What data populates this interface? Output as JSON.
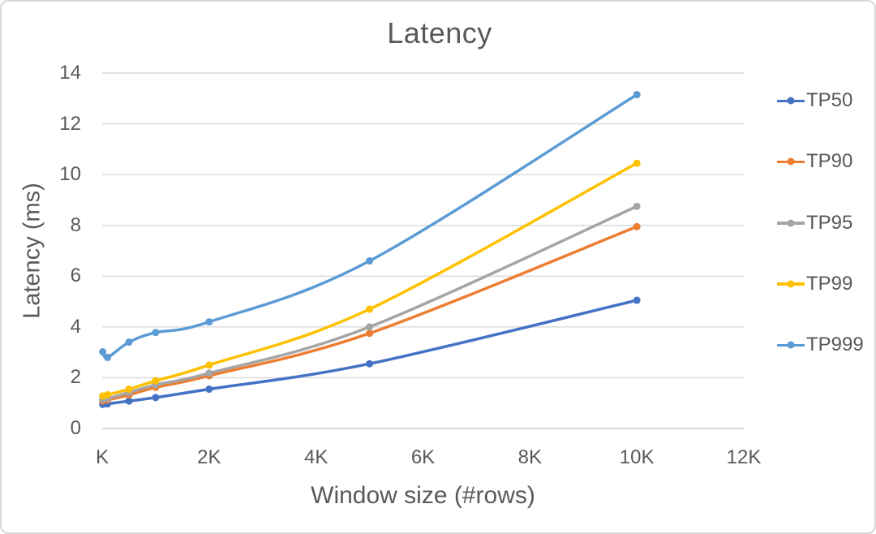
{
  "chart": {
    "title": "Latency",
    "x_axis_title": "Window size (#rows)",
    "y_axis_title": "Latency (ms)"
  },
  "chart_data": {
    "type": "line",
    "title": "Latency",
    "xlabel": "Window size (#rows)",
    "ylabel": "Latency (ms)",
    "x": [
      10,
      100,
      500,
      1000,
      2000,
      5000,
      10000
    ],
    "series": [
      {
        "name": "TP50",
        "color": "#4472C4",
        "values": [
          0.95,
          0.97,
          1.08,
          1.22,
          1.55,
          2.55,
          5.05
        ]
      },
      {
        "name": "TP90",
        "color": "#ED7D31",
        "values": [
          1.08,
          1.12,
          1.32,
          1.62,
          2.08,
          3.75,
          7.95
        ]
      },
      {
        "name": "TP95",
        "color": "#A5A5A5",
        "values": [
          1.15,
          1.18,
          1.42,
          1.72,
          2.18,
          4.0,
          8.75
        ]
      },
      {
        "name": "TP99",
        "color": "#FFC000",
        "values": [
          1.28,
          1.33,
          1.55,
          1.88,
          2.5,
          4.7,
          10.45
        ]
      },
      {
        "name": "TP999",
        "color": "#5B9BD5",
        "values": [
          3.02,
          2.8,
          3.4,
          3.78,
          4.2,
          6.6,
          13.15
        ]
      }
    ],
    "xlim": [
      0,
      12000
    ],
    "ylim": [
      0,
      14
    ],
    "x_ticks": {
      "values": [
        0,
        2000,
        4000,
        6000,
        8000,
        10000,
        12000
      ],
      "labels": [
        "K",
        "2K",
        "4K",
        "6K",
        "8K",
        "10K",
        "12K"
      ]
    },
    "y_ticks": {
      "values": [
        0,
        2,
        4,
        6,
        8,
        10,
        12,
        14
      ],
      "labels": [
        "0",
        "2",
        "4",
        "6",
        "8",
        "10",
        "12",
        "14"
      ]
    },
    "grid": "horizontal",
    "legend_position": "right",
    "line_style": "smooth",
    "marker": "circle",
    "grid_color": "#D9D9D9",
    "axis_line_color": "#C6C6C6",
    "text_color": "#595959"
  }
}
